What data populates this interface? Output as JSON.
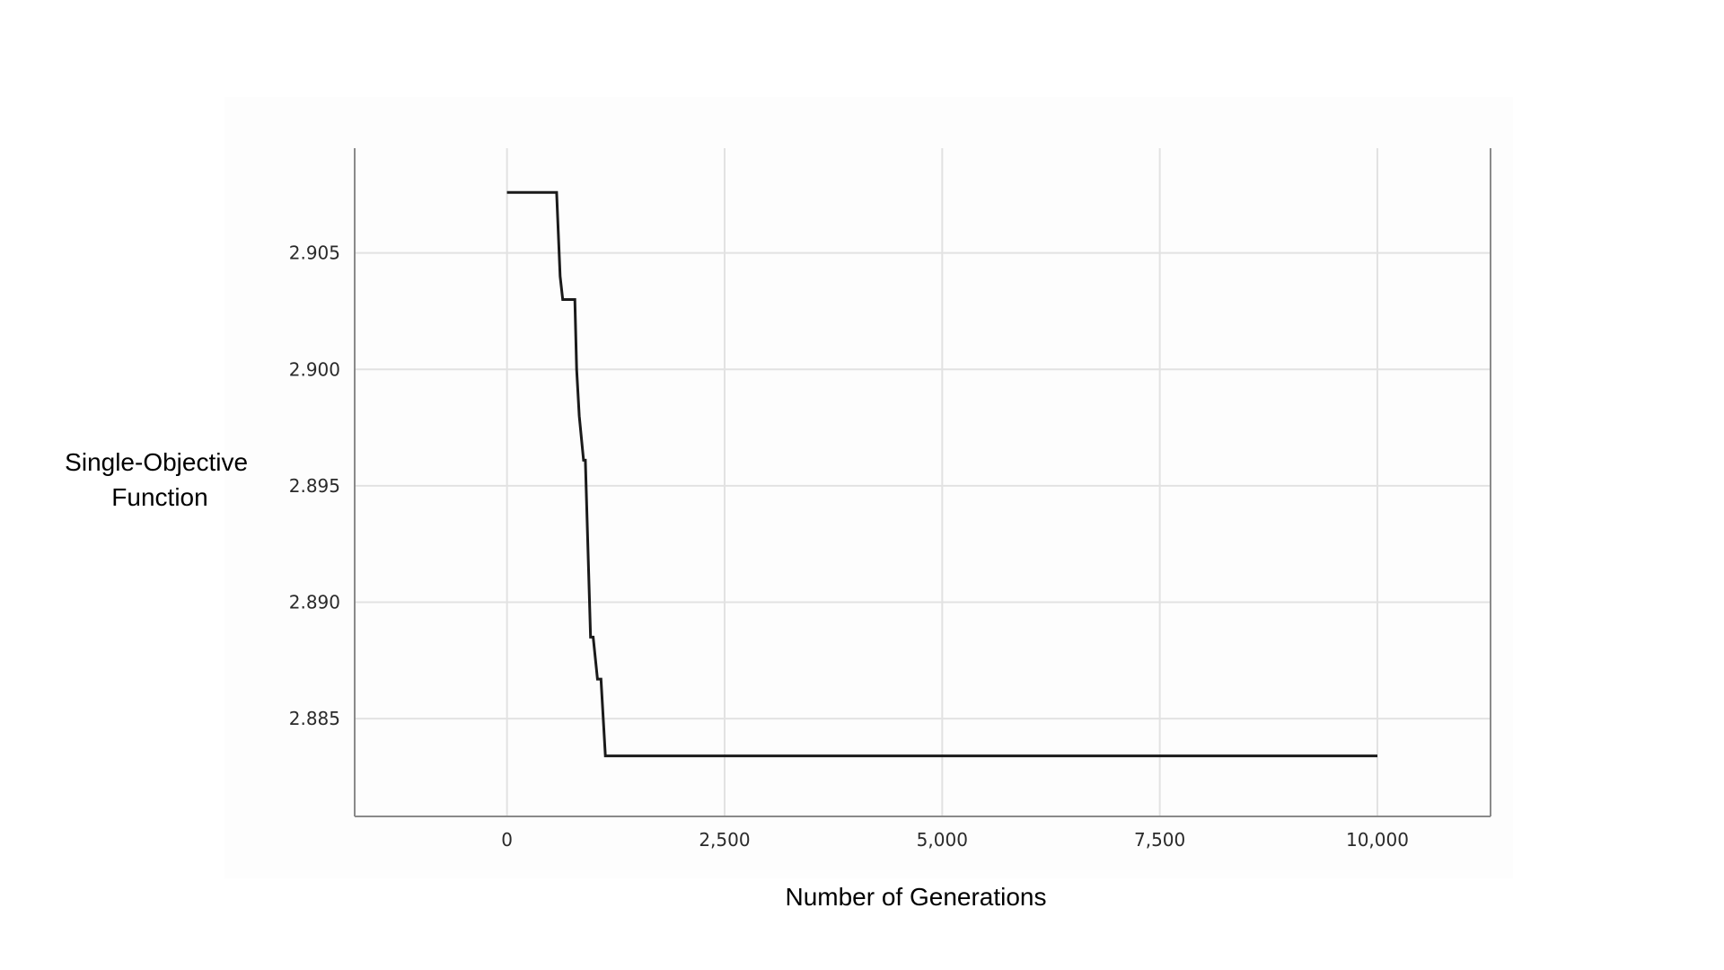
{
  "chart_data": {
    "type": "line",
    "title": "",
    "xlabel": "Number of Generations",
    "ylabel_lines": [
      "Single-Objective",
      "Function"
    ],
    "xlim": [
      -1750,
      11300
    ],
    "ylim": [
      2.8808,
      2.9095
    ],
    "x_ticks": [
      0,
      2500,
      5000,
      7500,
      10000
    ],
    "x_tick_labels": [
      "0",
      "2,500",
      "5,000",
      "7,500",
      "10,000"
    ],
    "y_ticks": [
      2.885,
      2.89,
      2.895,
      2.9,
      2.905
    ],
    "y_tick_labels": [
      "2.885",
      "2.890",
      "2.895",
      "2.900",
      "2.905"
    ],
    "grid": true,
    "colors": {
      "line": "#1a1a1a",
      "grid": "#e2e2e2",
      "axis": "#8a8a8a",
      "plot_background": "#fdfdfd"
    },
    "series": [
      {
        "x": [
          0,
          570,
          610,
          640,
          780,
          800,
          830,
          880,
          900,
          960,
          990,
          1040,
          1080,
          1130,
          1150,
          10000
        ],
        "y": [
          2.9076,
          2.9076,
          2.904,
          2.903,
          2.903,
          2.9,
          2.898,
          2.8961,
          2.8961,
          2.8885,
          2.8885,
          2.8867,
          2.8867,
          2.8834,
          2.8834,
          2.8834
        ]
      }
    ]
  }
}
